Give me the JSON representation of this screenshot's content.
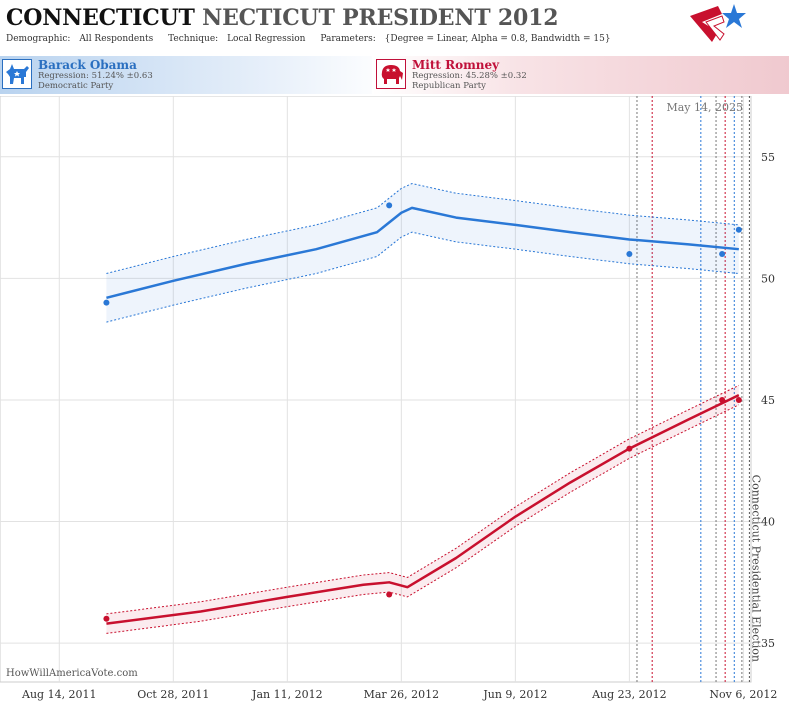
{
  "header": {
    "title_part1": "CONNECTICUT",
    "title_part2": "NECTICUT PRESIDENT 2012",
    "demographic_label": "Demographic:",
    "demographic_value": "All Respondents",
    "technique_label": "Technique:",
    "technique_value": "Local Regression",
    "parameters_label": "Parameters:",
    "parameters_value": "{Degree = Linear, Alpha = 0.8, Bandwidth = 15}"
  },
  "candidates": [
    {
      "name": "Barack Obama",
      "regression": "Regression: 51.24% ±0.63",
      "party": "Democratic Party",
      "color": "#2a78d6"
    },
    {
      "name": "Mitt Romney",
      "regression": "Regression: 45.28% ±0.32",
      "party": "Republican Party",
      "color": "#c8102e"
    }
  ],
  "watermark": "HowWillAmericaVote.com",
  "colors": {
    "democrat": "#2a78d6",
    "republican": "#c8102e",
    "grid": "#e2e2e2"
  },
  "chart_data": {
    "type": "line",
    "date_label": "May 14, 2025",
    "event_label": "Connecticut Presidential Election",
    "event_date": "2012-11-06",
    "x_ticks": [
      {
        "date": "2011-08-14",
        "label": "Aug 14, 2011"
      },
      {
        "date": "2011-10-28",
        "label": "Oct 28, 2011"
      },
      {
        "date": "2012-01-11",
        "label": "Jan 11, 2012"
      },
      {
        "date": "2012-03-26",
        "label": "Mar 26, 2012"
      },
      {
        "date": "2012-06-09",
        "label": "Jun 9, 2012"
      },
      {
        "date": "2012-08-23",
        "label": "Aug 23, 2012"
      },
      {
        "date": "2012-11-06",
        "label": "Nov 6, 2012"
      }
    ],
    "y_ticks": [
      35,
      40,
      45,
      50,
      55
    ],
    "xlim": [
      "2011-07-06",
      "2012-11-11"
    ],
    "ylim": [
      33.4,
      57.5
    ],
    "poll_date_lines": [
      "2012-08-28",
      "2012-09-07",
      "2012-10-09",
      "2012-10-19",
      "2012-10-25",
      "2012-10-31",
      "2012-11-05"
    ],
    "series": [
      {
        "name": "Barack Obama",
        "color": "#2a78d6",
        "points": [
          {
            "date": "2011-09-14",
            "value": 49.0
          },
          {
            "date": "2012-03-18",
            "value": 53.0
          },
          {
            "date": "2012-08-23",
            "value": 51.0
          },
          {
            "date": "2012-10-23",
            "value": 51.0
          },
          {
            "date": "2012-11-03",
            "value": 52.0
          }
        ],
        "trend": [
          {
            "date": "2011-09-14",
            "value": 49.2
          },
          {
            "date": "2011-10-28",
            "value": 49.9
          },
          {
            "date": "2011-12-15",
            "value": 50.6
          },
          {
            "date": "2012-01-30",
            "value": 51.2
          },
          {
            "date": "2012-03-10",
            "value": 51.9
          },
          {
            "date": "2012-03-26",
            "value": 52.7
          },
          {
            "date": "2012-04-02",
            "value": 52.9
          },
          {
            "date": "2012-05-01",
            "value": 52.5
          },
          {
            "date": "2012-06-09",
            "value": 52.2
          },
          {
            "date": "2012-07-15",
            "value": 51.9
          },
          {
            "date": "2012-08-23",
            "value": 51.6
          },
          {
            "date": "2012-10-01",
            "value": 51.4
          },
          {
            "date": "2012-11-03",
            "value": 51.2
          }
        ],
        "band_width": 1.0
      },
      {
        "name": "Mitt Romney",
        "color": "#c8102e",
        "points": [
          {
            "date": "2011-09-14",
            "value": 36.0
          },
          {
            "date": "2012-03-18",
            "value": 37.0
          },
          {
            "date": "2012-08-23",
            "value": 43.0
          },
          {
            "date": "2012-10-23",
            "value": 45.0
          },
          {
            "date": "2012-11-03",
            "value": 45.0
          }
        ],
        "trend": [
          {
            "date": "2011-09-14",
            "value": 35.8
          },
          {
            "date": "2011-11-15",
            "value": 36.3
          },
          {
            "date": "2012-01-11",
            "value": 36.9
          },
          {
            "date": "2012-03-01",
            "value": 37.4
          },
          {
            "date": "2012-03-18",
            "value": 37.5
          },
          {
            "date": "2012-03-30",
            "value": 37.3
          },
          {
            "date": "2012-05-01",
            "value": 38.5
          },
          {
            "date": "2012-06-09",
            "value": 40.2
          },
          {
            "date": "2012-07-15",
            "value": 41.6
          },
          {
            "date": "2012-08-23",
            "value": 43.0
          },
          {
            "date": "2012-10-01",
            "value": 44.2
          },
          {
            "date": "2012-11-03",
            "value": 45.2
          }
        ],
        "band_width": 0.4
      }
    ]
  }
}
